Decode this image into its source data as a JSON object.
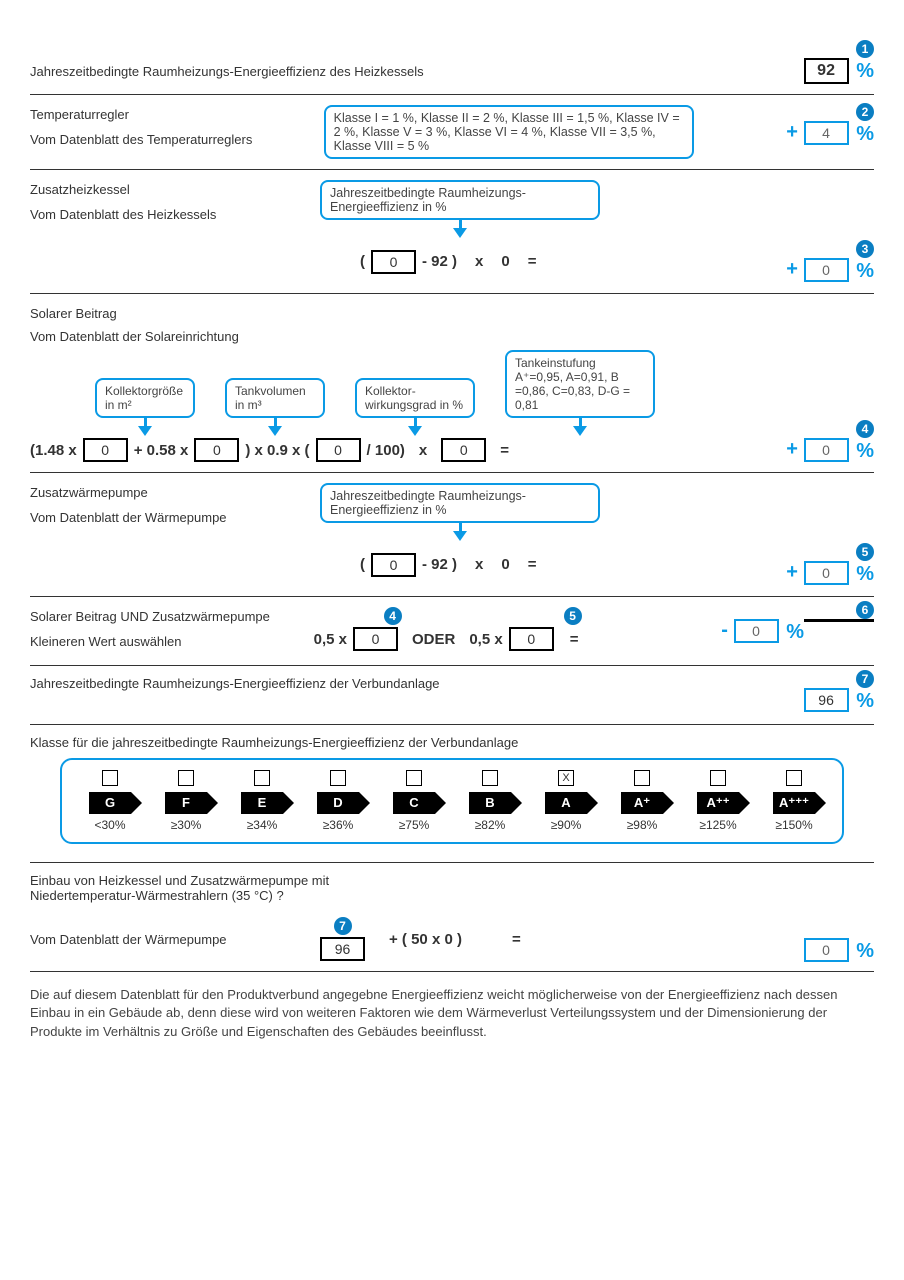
{
  "colors": {
    "accent": "#0a9ae5",
    "badge": "#0a7ec2"
  },
  "s1": {
    "title": "Jahreszeitbedingte Raumheizungs-Energieeffizienz des Heizkessels",
    "badge": "1",
    "value": "92",
    "pct": "%"
  },
  "s2": {
    "title": "Temperaturregler",
    "sub": "Vom Datenblatt des Temperaturreglers",
    "callout": "Klasse I = 1 %, Klasse II = 2 %, Klasse III = 1,5 %, Klasse IV = 2 %, Klasse V = 3 %, Klasse VI = 4 %, Klasse VII = 3,5 %, Klasse VIII = 5 %",
    "badge": "2",
    "op": "+",
    "value": "4",
    "pct": "%"
  },
  "s3": {
    "title": "Zusatzheizkessel",
    "sub": "Vom Datenblatt des Heizkessels",
    "callout": "Jahreszeitbedingte Raumheizungs-Energieeffizienz in %",
    "f_open": "(",
    "f_val1": "0",
    "f_minus": "- 92 )",
    "f_x": "x",
    "f_mult": "0",
    "f_eq": "=",
    "badge": "3",
    "op": "+",
    "value": "0",
    "pct": "%"
  },
  "s4": {
    "title": "Solarer Beitrag",
    "sub": "Vom Datenblatt der Solareinrichtung",
    "c1": "Kollektorgröße in m²",
    "c2": "Tankvolumen in m³",
    "c3": "Kollektor-wirkungsgrad in %",
    "c4": "Tankeinstufung A⁺=0,95, A=0,91, B =0,86, C=0,83, D-G = 0,81",
    "f1": "(1.48 x",
    "v1": "0",
    "f2": "+ 0.58 x",
    "v2": "0",
    "f3": ")  x  0.9  x  (",
    "v3": "0",
    "f4": "/ 100)",
    "f5": "x",
    "v4": "0",
    "f6": "=",
    "badge": "4",
    "op": "+",
    "value": "0",
    "pct": "%"
  },
  "s5": {
    "title": "Zusatzwärmepumpe",
    "sub": "Vom Datenblatt der Wärmepumpe",
    "callout": "Jahreszeitbedingte Raumheizungs-Energieeffizienz in %",
    "f_open": "(",
    "f_val1": "0",
    "f_minus": "- 92 )",
    "f_x": "x",
    "f_mult": "0",
    "f_eq": "=",
    "badge": "5",
    "op": "+",
    "value": "0",
    "pct": "%"
  },
  "s6": {
    "title": "Solarer Beitrag UND Zusatzwärmepumpe",
    "sub": "Kleineren Wert auswählen",
    "b4": "4",
    "b5": "5",
    "f1": "0,5 x",
    "v1": "0",
    "oder": "ODER",
    "f2": "0,5 x",
    "v2": "0",
    "eq": "=",
    "badge": "6",
    "op": "-",
    "value": "0",
    "pct": "%"
  },
  "s7": {
    "title": "Jahreszeitbedingte Raumheizungs-Energieeffizienz der Verbundanlage",
    "badge": "7",
    "value": "96",
    "pct": "%"
  },
  "s8": {
    "title": "Klasse für die jahreszeitbedingte Raumheizungs-Energieeffizienz der Verbundanlage",
    "classes": [
      {
        "chk": "",
        "lbl": "G",
        "rng": "<30%"
      },
      {
        "chk": "",
        "lbl": "F",
        "rng": "≥30%"
      },
      {
        "chk": "",
        "lbl": "E",
        "rng": "≥34%"
      },
      {
        "chk": "",
        "lbl": "D",
        "rng": "≥36%"
      },
      {
        "chk": "",
        "lbl": "C",
        "rng": "≥75%"
      },
      {
        "chk": "",
        "lbl": "B",
        "rng": "≥82%"
      },
      {
        "chk": "X",
        "lbl": "A",
        "rng": "≥90%"
      },
      {
        "chk": "",
        "lbl": "A⁺",
        "rng": "≥98%"
      },
      {
        "chk": "",
        "lbl": "A⁺⁺",
        "rng": "≥125%"
      },
      {
        "chk": "",
        "lbl": "A⁺⁺⁺",
        "rng": "≥150%"
      }
    ]
  },
  "s9": {
    "title": "Einbau von Heizkessel und Zusatzwärmepumpe mit Niedertemperatur-Wärmestrahlern (35 °C) ?",
    "sub": "Vom Datenblatt der Wärmepumpe",
    "badge": "7",
    "v1": "96",
    "f": "+ ( 50 x 0 )",
    "eq": "=",
    "value": "0",
    "pct": "%"
  },
  "footnote": "Die auf diesem Datenblatt für den Produktverbund angegebne Energieeffizienz weicht möglicherweise von der Energieeffizienz nach dessen Einbau in ein Gebäude ab, denn diese wird von weiteren Faktoren wie dem Wärmeverlust Verteilungssystem und der Dimensionierung der Produkte im Verhältnis zu Größe und Eigenschaften des Gebäudes beeinflusst."
}
